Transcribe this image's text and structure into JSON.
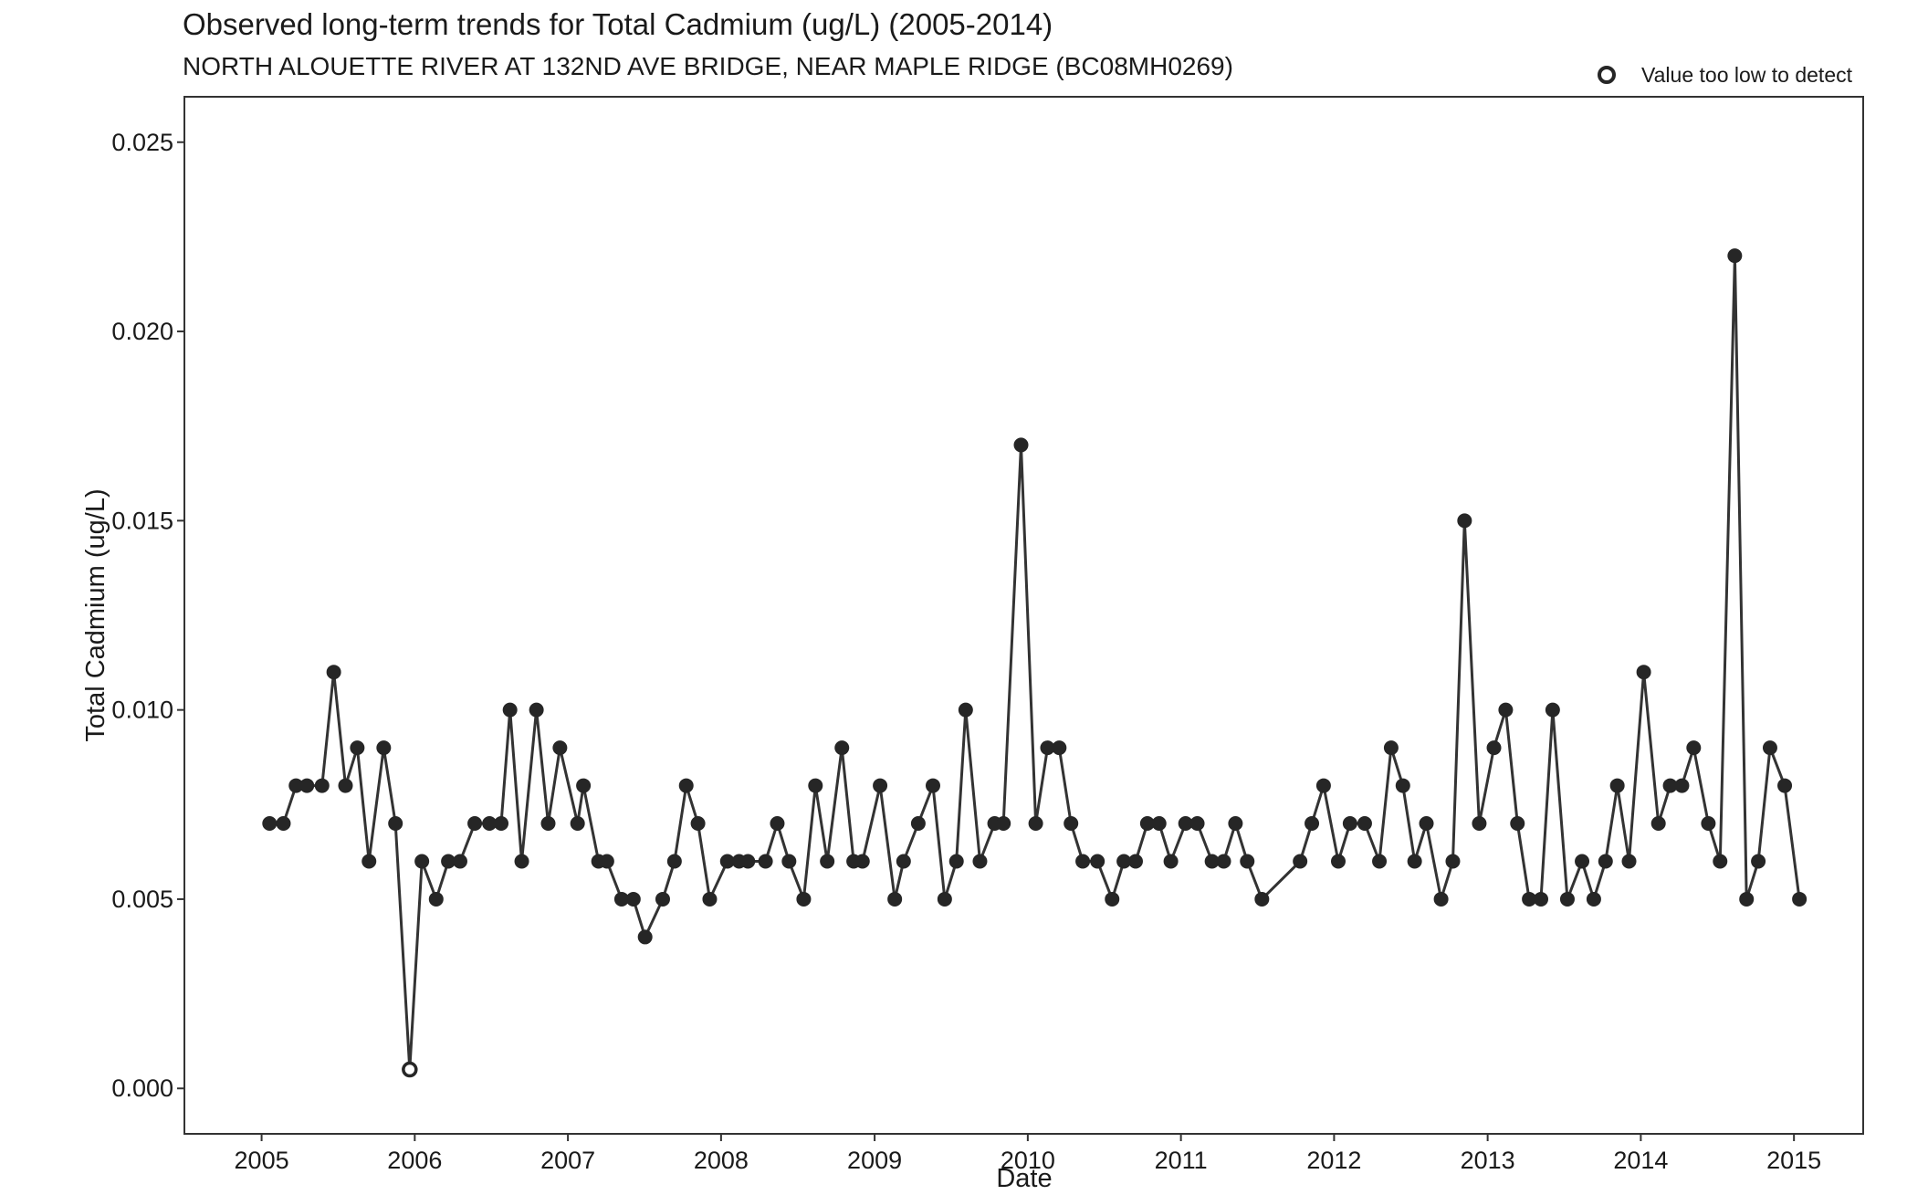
{
  "chart_data": {
    "type": "line",
    "title": "Observed long-term trends for Total Cadmium (ug/L) (2005-2014)",
    "subtitle": "NORTH ALOUETTE RIVER AT 132ND AVE BRIDGE, NEAR MAPLE RIDGE (BC08MH0269)",
    "xlabel": "Date",
    "ylabel": "Total Cadmium (ug/L)",
    "xlim": [
      "2004-07-01",
      "2015-06-15"
    ],
    "ylim": [
      -0.0012,
      0.0262
    ],
    "x_ticks": [
      "2005",
      "2006",
      "2007",
      "2008",
      "2009",
      "2010",
      "2011",
      "2012",
      "2013",
      "2014",
      "2015"
    ],
    "y_ticks": [
      "0.000",
      "0.005",
      "0.010",
      "0.015",
      "0.020",
      "0.025"
    ],
    "legend": {
      "position": "top-right",
      "label": "Value too low to detect"
    },
    "grid": false,
    "colors": {
      "line": "#333333",
      "point": "#262626",
      "background": "#ffffff"
    },
    "series": [
      {
        "points": [
          [
            "2005-01-20",
            0.007
          ],
          [
            "2005-02-22",
            0.007
          ],
          [
            "2005-03-24",
            0.008
          ],
          [
            "2005-04-19",
            0.008
          ],
          [
            "2005-05-25",
            0.008
          ],
          [
            "2005-06-22",
            0.011
          ],
          [
            "2005-07-20",
            0.008
          ],
          [
            "2005-08-17",
            0.009
          ],
          [
            "2005-09-14",
            0.006
          ],
          [
            "2005-10-19",
            0.009
          ],
          [
            "2005-11-16",
            0.007
          ],
          [
            "2005-12-20",
            0.0005,
            "low"
          ],
          [
            "2006-01-18",
            0.006
          ],
          [
            "2006-02-21",
            0.005
          ],
          [
            "2006-03-22",
            0.006
          ],
          [
            "2006-04-19",
            0.006
          ],
          [
            "2006-05-24",
            0.007
          ],
          [
            "2006-06-28",
            0.007
          ],
          [
            "2006-07-26",
            0.007
          ],
          [
            "2006-08-16",
            0.01
          ],
          [
            "2006-09-13",
            0.006
          ],
          [
            "2006-10-18",
            0.01
          ],
          [
            "2006-11-15",
            0.007
          ],
          [
            "2006-12-13",
            0.009
          ],
          [
            "2007-01-24",
            0.007
          ],
          [
            "2007-02-07",
            0.008
          ],
          [
            "2007-03-15",
            0.006
          ],
          [
            "2007-04-04",
            0.006
          ],
          [
            "2007-05-09",
            0.005
          ],
          [
            "2007-06-06",
            0.005
          ],
          [
            "2007-07-04",
            0.004
          ],
          [
            "2007-08-15",
            0.005
          ],
          [
            "2007-09-12",
            0.006
          ],
          [
            "2007-10-10",
            0.008
          ],
          [
            "2007-11-07",
            0.007
          ],
          [
            "2007-12-05",
            0.005
          ],
          [
            "2008-01-16",
            0.006
          ],
          [
            "2008-02-13",
            0.006
          ],
          [
            "2008-03-05",
            0.006
          ],
          [
            "2008-04-16",
            0.006
          ],
          [
            "2008-05-14",
            0.007
          ],
          [
            "2008-06-11",
            0.006
          ],
          [
            "2008-07-16",
            0.005
          ],
          [
            "2008-08-13",
            0.008
          ],
          [
            "2008-09-10",
            0.006
          ],
          [
            "2008-10-15",
            0.009
          ],
          [
            "2008-11-12",
            0.006
          ],
          [
            "2008-12-03",
            0.006
          ],
          [
            "2009-01-14",
            0.008
          ],
          [
            "2009-02-18",
            0.005
          ],
          [
            "2009-03-11",
            0.006
          ],
          [
            "2009-04-15",
            0.007
          ],
          [
            "2009-05-20",
            0.008
          ],
          [
            "2009-06-17",
            0.005
          ],
          [
            "2009-07-15",
            0.006
          ],
          [
            "2009-08-06",
            0.01
          ],
          [
            "2009-09-09",
            0.006
          ],
          [
            "2009-10-14",
            0.007
          ],
          [
            "2009-11-04",
            0.007
          ],
          [
            "2009-12-16",
            0.017
          ],
          [
            "2010-01-20",
            0.007
          ],
          [
            "2010-02-17",
            0.009
          ],
          [
            "2010-03-17",
            0.009
          ],
          [
            "2010-04-14",
            0.007
          ],
          [
            "2010-05-12",
            0.006
          ],
          [
            "2010-06-16",
            0.006
          ],
          [
            "2010-07-21",
            0.005
          ],
          [
            "2010-08-18",
            0.006
          ],
          [
            "2010-09-15",
            0.006
          ],
          [
            "2010-10-13",
            0.007
          ],
          [
            "2010-11-10",
            0.007
          ],
          [
            "2010-12-08",
            0.006
          ],
          [
            "2011-01-12",
            0.007
          ],
          [
            "2011-02-09",
            0.007
          ],
          [
            "2011-03-16",
            0.006
          ],
          [
            "2011-04-13",
            0.006
          ],
          [
            "2011-05-11",
            0.007
          ],
          [
            "2011-06-08",
            0.006
          ],
          [
            "2011-07-13",
            0.005
          ],
          [
            "2011-10-12",
            0.006
          ],
          [
            "2011-11-09",
            0.007
          ],
          [
            "2011-12-07",
            0.008
          ],
          [
            "2012-01-11",
            0.006
          ],
          [
            "2012-02-08",
            0.007
          ],
          [
            "2012-03-14",
            0.007
          ],
          [
            "2012-04-18",
            0.006
          ],
          [
            "2012-05-16",
            0.009
          ],
          [
            "2012-06-13",
            0.008
          ],
          [
            "2012-07-11",
            0.006
          ],
          [
            "2012-08-08",
            0.007
          ],
          [
            "2012-09-12",
            0.005
          ],
          [
            "2012-10-10",
            0.006
          ],
          [
            "2012-11-07",
            0.015
          ],
          [
            "2012-12-12",
            0.007
          ],
          [
            "2013-01-16",
            0.009
          ],
          [
            "2013-02-13",
            0.01
          ],
          [
            "2013-03-13",
            0.007
          ],
          [
            "2013-04-10",
            0.005
          ],
          [
            "2013-05-08",
            0.005
          ],
          [
            "2013-06-05",
            0.01
          ],
          [
            "2013-07-10",
            0.005
          ],
          [
            "2013-08-14",
            0.006
          ],
          [
            "2013-09-11",
            0.005
          ],
          [
            "2013-10-09",
            0.006
          ],
          [
            "2013-11-06",
            0.008
          ],
          [
            "2013-12-04",
            0.006
          ],
          [
            "2014-01-08",
            0.011
          ],
          [
            "2014-02-12",
            0.007
          ],
          [
            "2014-03-12",
            0.008
          ],
          [
            "2014-04-09",
            0.008
          ],
          [
            "2014-05-07",
            0.009
          ],
          [
            "2014-06-11",
            0.007
          ],
          [
            "2014-07-09",
            0.006
          ],
          [
            "2014-08-13",
            0.022
          ],
          [
            "2014-09-10",
            0.005
          ],
          [
            "2014-10-08",
            0.006
          ],
          [
            "2014-11-05",
            0.009
          ],
          [
            "2014-12-10",
            0.008
          ],
          [
            "2015-01-14",
            0.005
          ]
        ]
      }
    ]
  }
}
